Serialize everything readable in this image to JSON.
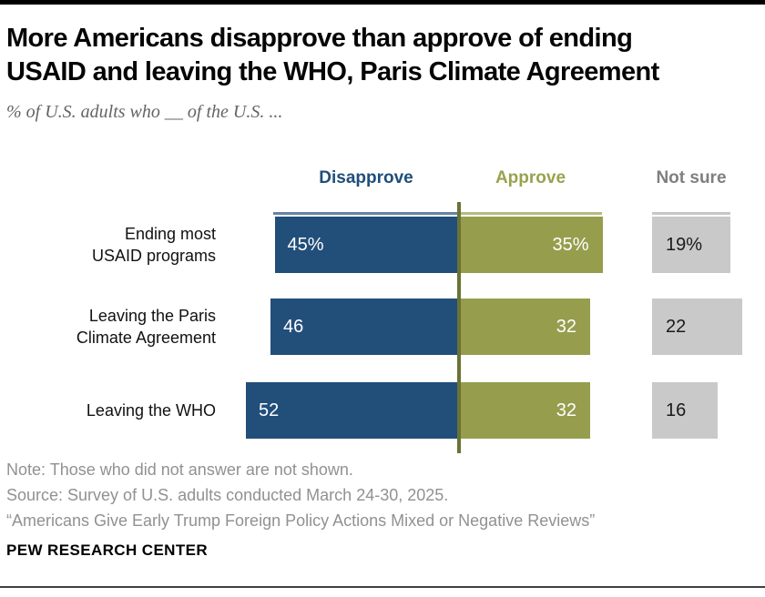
{
  "header": {
    "title": "More Americans disapprove than approve of ending\nUSAID and leaving the WHO, Paris Climate Agreement",
    "subtitle": "% of U.S. adults who __ of the U.S. ..."
  },
  "chart_data": {
    "type": "bar",
    "orientation": "horizontal-diverging",
    "title": "More Americans disapprove than approve of ending USAID and leaving the WHO, Paris Climate Agreement",
    "subtitle": "% of U.S. adults who __ of the U.S. ...",
    "column_headers": [
      "Disapprove",
      "Approve",
      "Not sure"
    ],
    "categories": [
      "Ending most USAID programs",
      "Leaving the Paris Climate Agreement",
      "Leaving the WHO"
    ],
    "series": [
      {
        "name": "Disapprove",
        "color": "#224E7A",
        "values": [
          45,
          46,
          52
        ]
      },
      {
        "name": "Approve",
        "color": "#969E4D",
        "values": [
          35,
          32,
          32
        ]
      },
      {
        "name": "Not sure",
        "color": "#C9C9C9",
        "values": [
          19,
          22,
          16
        ]
      }
    ],
    "rows": [
      {
        "label": "Ending most\nUSAID programs",
        "disapprove": 45,
        "disapprove_label": "45%",
        "approve": 35,
        "approve_label": "35%",
        "not_sure": 19,
        "not_sure_label": "19%"
      },
      {
        "label": "Leaving the Paris\nClimate Agreement",
        "disapprove": 46,
        "disapprove_label": "46",
        "approve": 32,
        "approve_label": "32",
        "not_sure": 22,
        "not_sure_label": "22"
      },
      {
        "label": "Leaving the WHO",
        "disapprove": 52,
        "disapprove_label": "52",
        "approve": 32,
        "approve_label": "32",
        "not_sure": 16,
        "not_sure_label": "16"
      }
    ],
    "colors": {
      "disapprove": "#224E7A",
      "approve": "#969E4D",
      "not_sure_box": "#C9C9C9",
      "divider_line": "#6A7334",
      "disapprove_header_text": "#1F4E7A",
      "approve_header_text": "#99A24E",
      "not_sure_header_text": "#7F7F7F"
    },
    "legend_position": "top",
    "grid": false
  },
  "footer": {
    "note": "Note: Those who did not answer are not shown.",
    "source": "Source: Survey of U.S. adults conducted March 24-30, 2025.",
    "quote": "“Americans Give Early Trump Foreign Policy Actions Mixed or Negative Reviews”",
    "brand": "PEW RESEARCH CENTER"
  }
}
